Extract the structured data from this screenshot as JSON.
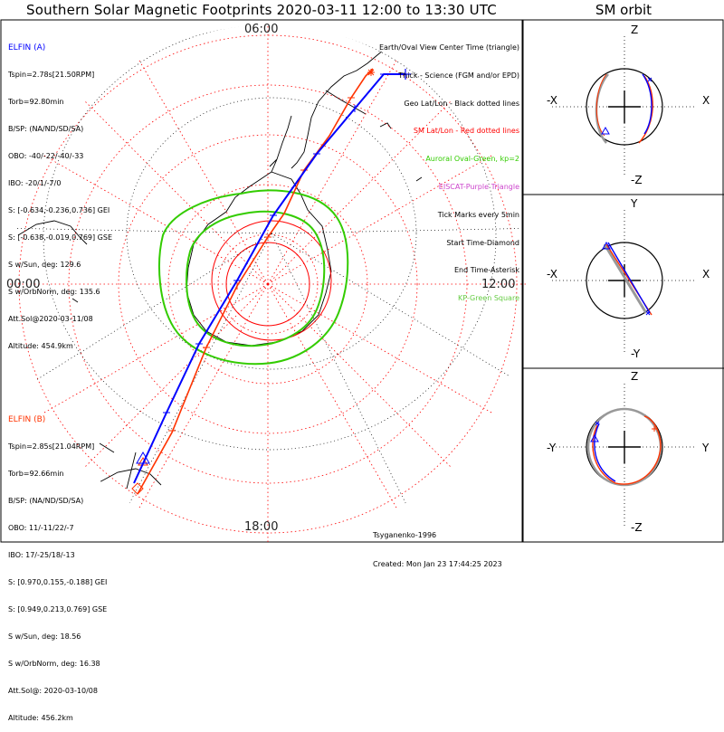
{
  "title": "Southern Solar Magnetic Footprints 2020-03-11 12:00 to 13:30 UTC",
  "sm_title": "SM orbit",
  "clock_labels": {
    "top": "06:00",
    "left": "00:00",
    "right": "12:00",
    "bottom": "18:00"
  },
  "colors": {
    "elfin_a": "#0000ff",
    "elfin_b": "#ff3300",
    "aurora": "#33cc00",
    "latlon_sm": "#ff0000",
    "geo": "#000000",
    "eiscat": "#cc44cc",
    "kp_green": "#66cc44"
  },
  "elfin_a": {
    "lines": [
      "ELFIN (A)",
      "Tspin=2.78s[21.50RPM]",
      "Torb=92.80min",
      "B/SP: (NA/ND/SD/SA)",
      "OBO: -40/-22/-40/-33",
      "IBO: -20/1/-7/0",
      "S: [-0.634,-0.236,0.736] GEI",
      "S: [-0.638,-0.019,0.769] GSE",
      "S w/Sun, deg: 129.6",
      "S w/OrbNorm, deg: 135.6",
      "Att.Sol@2020-03-11/08",
      "Altitude: 454.9km"
    ]
  },
  "elfin_b": {
    "lines": [
      "ELFIN (B)",
      "Tspin=2.85s[21.04RPM]",
      "Torb=92.66min",
      "B/SP: (NA/ND/SD/SA)",
      "OBO: 11/-11/22/-7",
      "IBO: 17/-25/18/-13",
      "S: [0.970,0.155,-0.188] GEI",
      "S: [0.949,0.213,0.769] GSE",
      "S w/Sun, deg: 18.56",
      "S w/OrbNorm, deg: 16.38",
      "Att.Sol@: 2020-03-10/08",
      "Altitude: 456.2km"
    ]
  },
  "legend": [
    "Earth/Oval View Center Time (triangle)",
    "Thick - Science (FGM and/or EPD)",
    "Geo Lat/Lon - Black dotted lines",
    "SM Lat/Lon - Red dotted lines",
    "Auroral Oval-Green, kp=2",
    "EISCAT-Purple Triangle",
    "Tick Marks every 5min",
    "Start Time-Diamond",
    "End Time-Asterisk",
    "KP-Green Square"
  ],
  "credit": [
    "Tsyganenko-1996",
    "Created: Mon Jan 23 17:44:25 2023"
  ],
  "orbit_panels": [
    {
      "top": "Z",
      "bottom": "-Z",
      "left": "-X",
      "right": "X"
    },
    {
      "top": "Y",
      "bottom": "-Y",
      "left": "-X",
      "right": "X"
    },
    {
      "top": "Z",
      "bottom": "-Z",
      "left": "-Y",
      "right": "Y"
    }
  ]
}
